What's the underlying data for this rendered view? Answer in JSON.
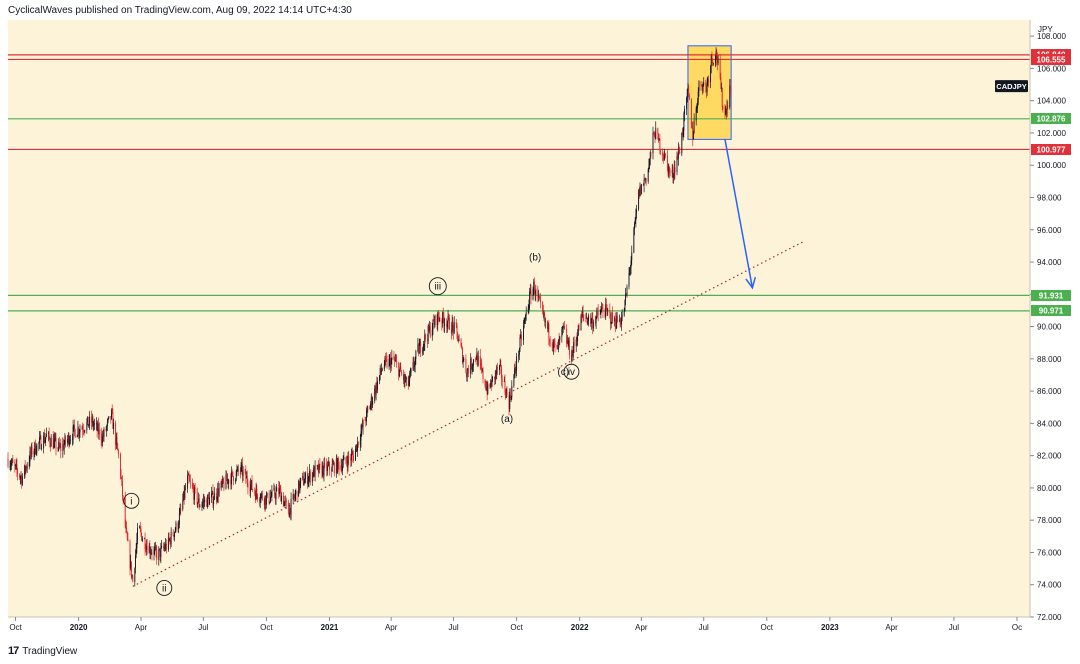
{
  "header": {
    "publisher": "CyclicalWaves published on TradingView.com, Aug 09, 2022 14:14 UTC+4:30"
  },
  "footer": {
    "logo": "17",
    "brand": "TradingView"
  },
  "colors": {
    "background": "#fdf3d8",
    "up_candle": "#131722",
    "down_candle": "#e0232a",
    "support_line": "#4caf50",
    "resistance_line": "#e0303a",
    "trendline": "#a0322d",
    "projection_arrow": "#2962ff",
    "box_fill": "#ffd54f",
    "box_border": "#2962ff"
  },
  "chart_data": {
    "type": "candlestick",
    "symbol": "CADJPY",
    "currency_label": "JPY",
    "xlim": [
      "2019-09-20",
      "2023-10-20"
    ],
    "ylim": [
      72.0,
      109.0
    ],
    "y_ticks": [
      72,
      74,
      76,
      78,
      80,
      82,
      84,
      86,
      88,
      90,
      92,
      94,
      96,
      98,
      100,
      102,
      104,
      106,
      108
    ],
    "y_tick_labels": [
      "72.000",
      "74.000",
      "76.000",
      "78.000",
      "80.000",
      "82.000",
      "84.000",
      "86.000",
      "88.000",
      "90.000",
      "92.000",
      "94.000",
      "96.000",
      "98.000",
      "100.000",
      "102.000",
      "104.000",
      "106.000",
      "108.000"
    ],
    "x_ticks": [
      {
        "date": "2019-10-01",
        "label": "Oct"
      },
      {
        "date": "2020-01-01",
        "label": "2020"
      },
      {
        "date": "2020-04-01",
        "label": "Apr"
      },
      {
        "date": "2020-07-01",
        "label": "Jul"
      },
      {
        "date": "2020-10-01",
        "label": "Oct"
      },
      {
        "date": "2021-01-01",
        "label": "2021"
      },
      {
        "date": "2021-04-01",
        "label": "Apr"
      },
      {
        "date": "2021-07-01",
        "label": "Jul"
      },
      {
        "date": "2021-10-01",
        "label": "Oct"
      },
      {
        "date": "2022-01-01",
        "label": "2022"
      },
      {
        "date": "2022-04-01",
        "label": "Apr"
      },
      {
        "date": "2022-07-01",
        "label": "Jul"
      },
      {
        "date": "2022-10-01",
        "label": "Oct"
      },
      {
        "date": "2023-01-01",
        "label": "2023"
      },
      {
        "date": "2023-04-01",
        "label": "Apr"
      },
      {
        "date": "2023-07-01",
        "label": "Jul"
      },
      {
        "date": "2023-10-01",
        "label": "Oc"
      }
    ],
    "price_path": [
      [
        "2019-09-20",
        81.8
      ],
      [
        "2019-10-10",
        80.6
      ],
      [
        "2019-10-25",
        82.3
      ],
      [
        "2019-11-15",
        83.2
      ],
      [
        "2019-12-05",
        82.4
      ],
      [
        "2019-12-25",
        83.5
      ],
      [
        "2020-01-20",
        84.1
      ],
      [
        "2020-02-05",
        83.1
      ],
      [
        "2020-02-18",
        84.5
      ],
      [
        "2020-03-01",
        81.5
      ],
      [
        "2020-03-10",
        77.2
      ],
      [
        "2020-03-20",
        74.2
      ],
      [
        "2020-03-28",
        77.5
      ],
      [
        "2020-04-10",
        76.4
      ],
      [
        "2020-04-25",
        75.8
      ],
      [
        "2020-05-10",
        76.5
      ],
      [
        "2020-05-25",
        77.8
      ],
      [
        "2020-06-08",
        80.5
      ],
      [
        "2020-06-25",
        79.0
      ],
      [
        "2020-07-15",
        79.4
      ],
      [
        "2020-08-05",
        80.5
      ],
      [
        "2020-08-25",
        81.1
      ],
      [
        "2020-09-15",
        79.7
      ],
      [
        "2020-10-02",
        79.3
      ],
      [
        "2020-10-20",
        79.8
      ],
      [
        "2020-11-02",
        78.5
      ],
      [
        "2020-11-20",
        80.3
      ],
      [
        "2020-12-10",
        81.0
      ],
      [
        "2020-12-28",
        81.2
      ],
      [
        "2021-01-20",
        81.5
      ],
      [
        "2021-02-05",
        82.0
      ],
      [
        "2021-02-20",
        84.0
      ],
      [
        "2021-03-05",
        85.6
      ],
      [
        "2021-03-20",
        87.6
      ],
      [
        "2021-04-05",
        87.9
      ],
      [
        "2021-04-25",
        86.3
      ],
      [
        "2021-05-10",
        88.5
      ],
      [
        "2021-05-25",
        89.6
      ],
      [
        "2021-06-08",
        90.6
      ],
      [
        "2021-06-22",
        90.3
      ],
      [
        "2021-07-05",
        89.7
      ],
      [
        "2021-07-20",
        87.2
      ],
      [
        "2021-08-03",
        88.2
      ],
      [
        "2021-08-20",
        86.0
      ],
      [
        "2021-09-05",
        87.5
      ],
      [
        "2021-09-20",
        85.3
      ],
      [
        "2021-10-05",
        88.7
      ],
      [
        "2021-10-20",
        91.8
      ],
      [
        "2021-10-26",
        92.5
      ],
      [
        "2021-11-10",
        90.4
      ],
      [
        "2021-11-28",
        88.4
      ],
      [
        "2021-12-08",
        89.8
      ],
      [
        "2021-12-20",
        88.2
      ],
      [
        "2022-01-05",
        90.7
      ],
      [
        "2022-01-20",
        90.3
      ],
      [
        "2022-02-05",
        91.1
      ],
      [
        "2022-02-20",
        90.3
      ],
      [
        "2022-03-05",
        90.5
      ],
      [
        "2022-03-15",
        93.5
      ],
      [
        "2022-03-28",
        98.2
      ],
      [
        "2022-04-10",
        99.5
      ],
      [
        "2022-04-20",
        102.1
      ],
      [
        "2022-05-05",
        100.5
      ],
      [
        "2022-05-15",
        99.2
      ],
      [
        "2022-05-28",
        101.2
      ],
      [
        "2022-06-08",
        104.6
      ],
      [
        "2022-06-15",
        101.9
      ],
      [
        "2022-06-25",
        105.2
      ],
      [
        "2022-07-05",
        104.8
      ],
      [
        "2022-07-12",
        106.6
      ],
      [
        "2022-07-20",
        106.9
      ],
      [
        "2022-07-28",
        104.0
      ],
      [
        "2022-08-01",
        103.1
      ],
      [
        "2022-08-09",
        104.9
      ]
    ],
    "horizontal_levels": [
      {
        "value": 106.84,
        "label": "106.840",
        "kind": "resistance"
      },
      {
        "value": 106.555,
        "label": "106.555",
        "kind": "resistance"
      },
      {
        "value": 102.876,
        "label": "102.876",
        "kind": "support"
      },
      {
        "value": 100.977,
        "label": "100.977",
        "kind": "resistance"
      },
      {
        "value": 91.931,
        "label": "91.931",
        "kind": "support"
      },
      {
        "value": 90.971,
        "label": "90.971",
        "kind": "support"
      }
    ],
    "last_price_tag": {
      "label": "CADJPY",
      "value": 104.9
    },
    "trendline": {
      "from": [
        "2020-03-20",
        73.9
      ],
      "to": [
        "2022-11-25",
        95.3
      ],
      "style": "dotted"
    },
    "projection_arrow": {
      "from": [
        "2022-08-01",
        101.6
      ],
      "to": [
        "2022-09-10",
        92.4
      ]
    },
    "highlight_box": {
      "from": [
        "2022-06-08",
        101.6
      ],
      "to": [
        "2022-08-10",
        107.4
      ]
    },
    "annotations": [
      {
        "text": "i",
        "date": "2020-03-18",
        "price": 79.2,
        "circled": true
      },
      {
        "text": "ii",
        "date": "2020-05-05",
        "price": 73.8,
        "circled": true
      },
      {
        "text": "iii",
        "date": "2021-06-08",
        "price": 92.5,
        "circled": true
      },
      {
        "text": "(a)",
        "date": "2021-09-17",
        "price": 84.3,
        "circled": false
      },
      {
        "text": "(b)",
        "date": "2021-10-28",
        "price": 94.3,
        "circled": false
      },
      {
        "text": "(c)",
        "date": "2021-12-08",
        "price": 87.2,
        "circled": false
      },
      {
        "text": "iv",
        "date": "2021-12-20",
        "price": 87.2,
        "circled": true
      }
    ]
  }
}
